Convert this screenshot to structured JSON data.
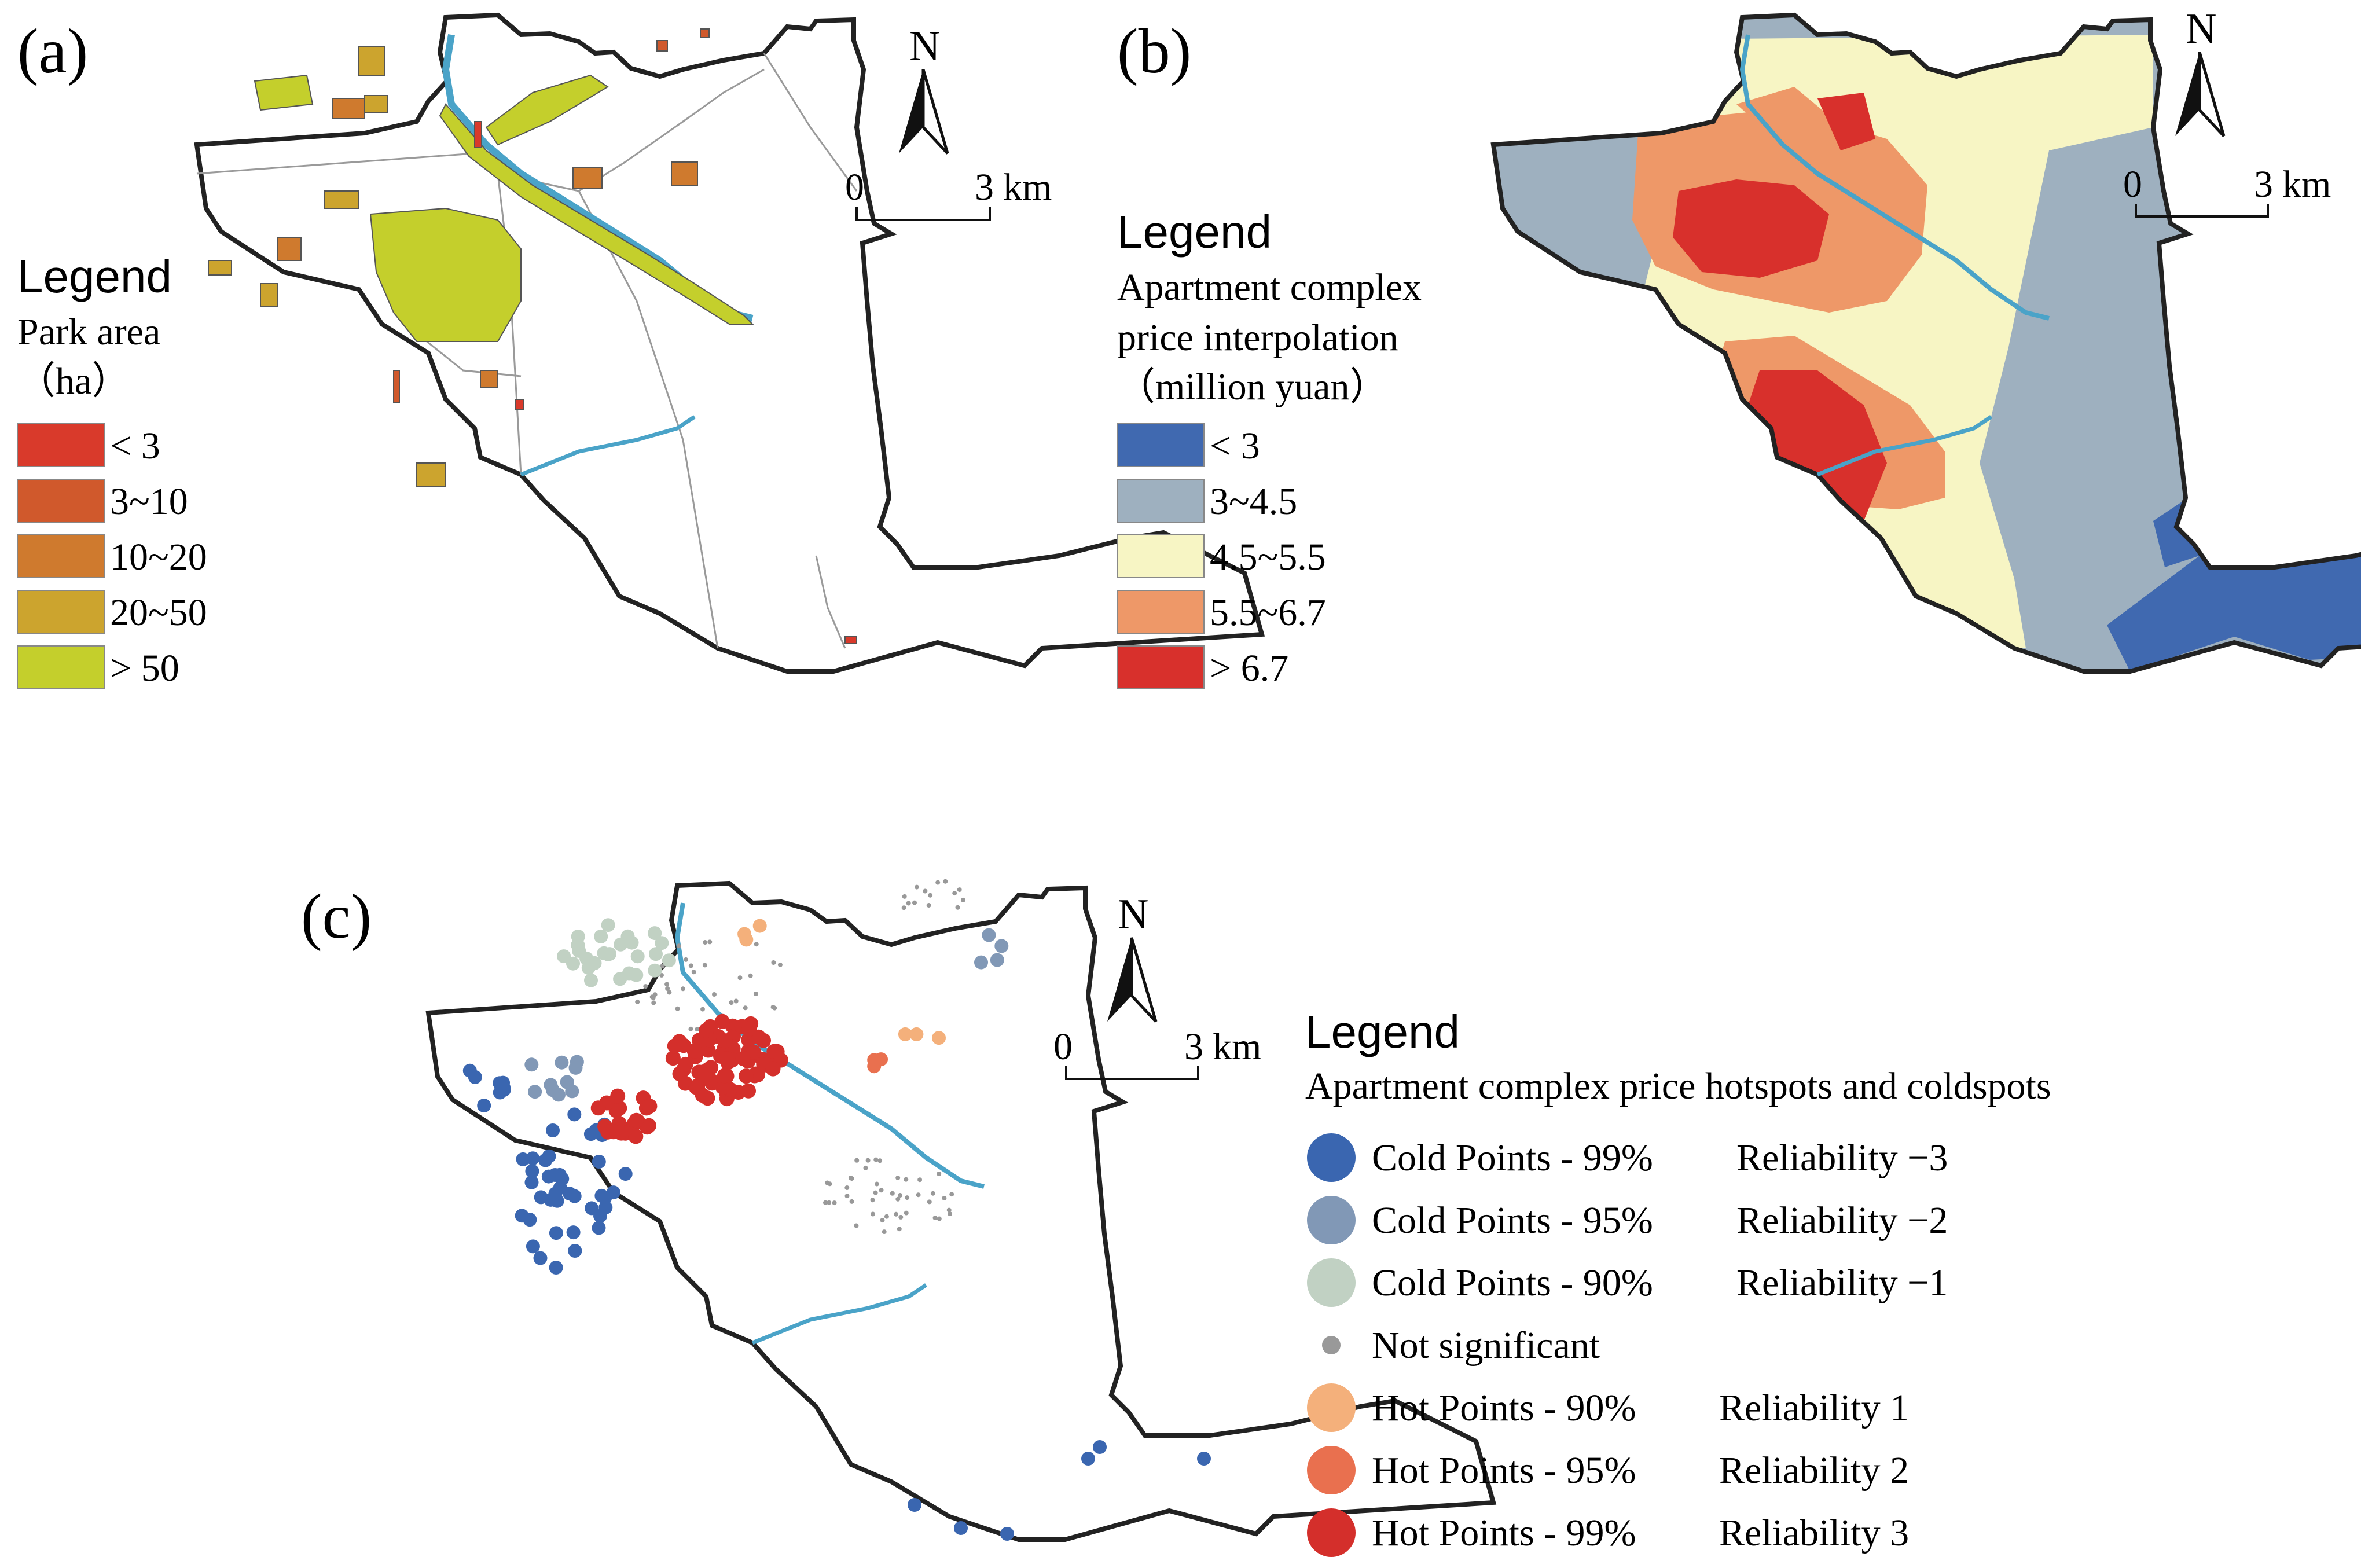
{
  "panels": {
    "a": {
      "label": "(a)",
      "north": "N",
      "scale": {
        "zero": "0",
        "end": "3",
        "unit": "km"
      },
      "legend": {
        "title": "Legend",
        "subtitle_1": "Park area",
        "subtitle_2": "（ha）",
        "classes": [
          {
            "label": "< 3",
            "color": "#d93a2b"
          },
          {
            "label": "3~10",
            "color": "#d0592c"
          },
          {
            "label": "10~20",
            "color": "#cf7a2e"
          },
          {
            "label": "20~50",
            "color": "#cca42e"
          },
          {
            "label": "> 50",
            "color": "#c4cf2c"
          }
        ]
      }
    },
    "b": {
      "label": "(b)",
      "north": "N",
      "scale": {
        "zero": "0",
        "end": "3",
        "unit": "km"
      },
      "legend": {
        "title": "Legend",
        "subtitle_1": "Apartment complex",
        "subtitle_2": "price interpolation",
        "subtitle_3": "（million yuan）",
        "classes": [
          {
            "label": "< 3",
            "color": "#4069b0"
          },
          {
            "label": "3~4.5",
            "color": "#9eb0bf"
          },
          {
            "label": "4.5~5.5",
            "color": "#f7f5c4"
          },
          {
            "label": "5.5~6.7",
            "color": "#ee9868"
          },
          {
            "label": "> 6.7",
            "color": "#d8302c"
          }
        ]
      }
    },
    "c": {
      "label": "(c)",
      "north": "N",
      "scale": {
        "zero": "0",
        "end": "3",
        "unit": "km"
      },
      "legend": {
        "title": "Legend",
        "subtitle": "Apartment complex price hotspots and coldspots",
        "classes": [
          {
            "label": "Cold Points - 99%",
            "reliability": "Reliability −3",
            "color": "#3a66b0",
            "size": "large"
          },
          {
            "label": "Cold Points - 95%",
            "reliability": "Reliability −2",
            "color": "#8198b6",
            "size": "large"
          },
          {
            "label": "Cold Points - 90%",
            "reliability": "Reliability −1",
            "color": "#c1d1c3",
            "size": "large"
          },
          {
            "label": "Not significant",
            "reliability": "",
            "color": "#999999",
            "size": "small"
          },
          {
            "label": "Hot Points - 90%",
            "reliability": "Reliability 1",
            "color": "#f4b07b",
            "size": "large"
          },
          {
            "label": "Hot Points - 95%",
            "reliability": "Reliability 2",
            "color": "#e9704f",
            "size": "large"
          },
          {
            "label": "Hot Points - 99%",
            "reliability": "Reliability 3",
            "color": "#d42f2b",
            "size": "large"
          }
        ]
      }
    }
  },
  "colors": {
    "river": "#4aa3c8",
    "boundary": "#222222",
    "district_line": "#9a9a9a"
  }
}
